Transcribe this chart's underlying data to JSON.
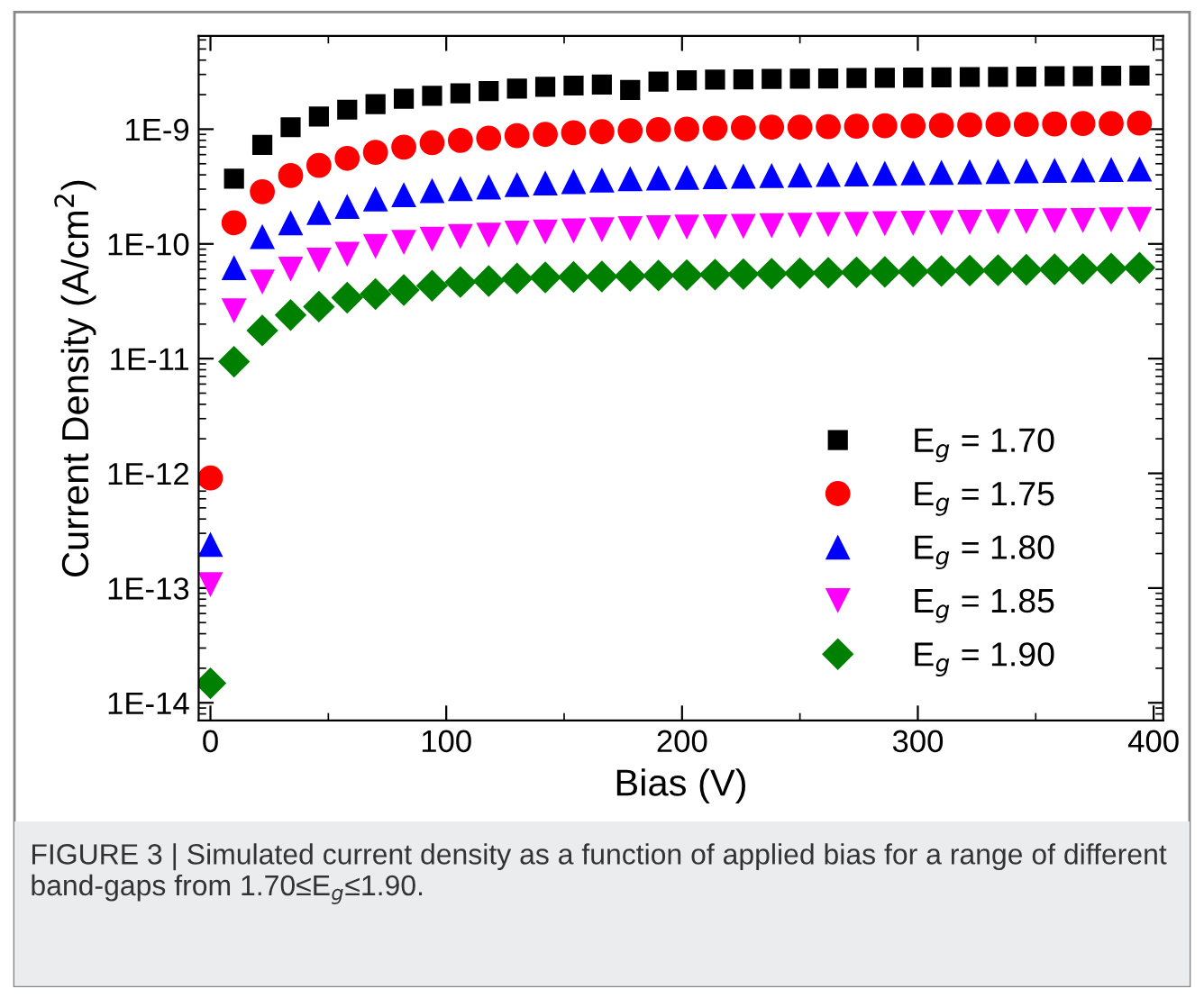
{
  "chart_data": {
    "type": "scatter",
    "xlabel": "Bias (V)",
    "ylabel": "Current Density (A/cm$^{2}$)",
    "x": [
      0,
      10,
      22,
      34,
      46,
      58,
      70,
      82,
      94,
      106,
      118,
      130,
      142,
      154,
      166,
      178,
      190,
      202,
      214,
      226,
      238,
      250,
      262,
      274,
      286,
      298,
      310,
      322,
      334,
      346,
      358,
      370,
      382,
      394
    ],
    "series": [
      {
        "name": "E$_{g}$ = 1.70",
        "color": "#000000",
        "marker": "square",
        "values": [
          null,
          3.7e-10,
          7.3e-10,
          1.04e-09,
          1.29e-09,
          1.48e-09,
          1.65e-09,
          1.84e-09,
          1.95e-09,
          2.05e-09,
          2.15e-09,
          2.26e-09,
          2.34e-09,
          2.4e-09,
          2.45e-09,
          2.2e-09,
          2.6e-09,
          2.67e-09,
          2.7e-09,
          2.72e-09,
          2.74e-09,
          2.76e-09,
          2.77e-09,
          2.79e-09,
          2.8e-09,
          2.82e-09,
          2.83e-09,
          2.85e-09,
          2.86e-09,
          2.87e-09,
          2.89e-09,
          2.9e-09,
          2.92e-09,
          2.93e-09
        ]
      },
      {
        "name": "E$_{g}$ = 1.75",
        "color": "#ff0000",
        "marker": "circle",
        "values": [
          9.1e-13,
          1.53e-10,
          2.85e-10,
          3.94e-10,
          4.83e-10,
          5.57e-10,
          6.28e-10,
          6.98e-10,
          7.62e-10,
          7.98e-10,
          8.36e-10,
          8.79e-10,
          9e-10,
          9.3e-10,
          9.5e-10,
          9.7e-10,
          9.9e-10,
          1e-09,
          1.02e-09,
          1.03e-09,
          1.04e-09,
          1.04e-09,
          1.05e-09,
          1.06e-09,
          1.07e-09,
          1.07e-09,
          1.08e-09,
          1.09e-09,
          1.1e-09,
          1.1e-09,
          1.11e-09,
          1.12e-09,
          1.12e-09,
          1.13e-09
        ]
      },
      {
        "name": "E$_{g}$ = 1.80",
        "color": "#0000ff",
        "marker": "triangle",
        "values": [
          2.4e-13,
          6.2e-11,
          1.16e-10,
          1.53e-10,
          1.88e-10,
          2.12e-10,
          2.47e-10,
          2.69e-10,
          2.92e-10,
          3.03e-10,
          3.14e-10,
          3.29e-10,
          3.4e-10,
          3.5e-10,
          3.6e-10,
          3.7e-10,
          3.75e-10,
          3.8e-10,
          3.86e-10,
          3.9e-10,
          3.95e-10,
          3.99e-10,
          4.03e-10,
          4.08e-10,
          4.12e-10,
          4.16e-10,
          4.2e-10,
          4.25e-10,
          4.29e-10,
          4.33e-10,
          4.37e-10,
          4.41e-10,
          4.46e-10,
          4.5e-10
        ]
      },
      {
        "name": "E$_{g}$ = 1.85",
        "color": "#ff00ff",
        "marker": "triangle_down",
        "values": [
          1.07e-13,
          2.61e-11,
          4.65e-11,
          6.03e-11,
          7.2e-11,
          8.1e-11,
          9.5e-11,
          1.03e-10,
          1.1e-10,
          1.16e-10,
          1.19e-10,
          1.24e-10,
          1.27e-10,
          1.3e-10,
          1.33e-10,
          1.36e-10,
          1.38e-10,
          1.4e-10,
          1.41e-10,
          1.42e-10,
          1.44e-10,
          1.45e-10,
          1.47e-10,
          1.48e-10,
          1.5e-10,
          1.51e-10,
          1.53e-10,
          1.54e-10,
          1.56e-10,
          1.57e-10,
          1.59e-10,
          1.6e-10,
          1.62e-10,
          1.63e-10
        ]
      },
      {
        "name": "E$_{g}$ = 1.90",
        "color": "#008000",
        "marker": "diamond",
        "values": [
          1.48e-14,
          9.4e-12,
          1.76e-11,
          2.4e-11,
          2.84e-11,
          3.4e-11,
          3.65e-11,
          3.96e-11,
          4.32e-11,
          4.65e-11,
          4.75e-11,
          5e-11,
          5.1e-11,
          5.15e-11,
          5.2e-11,
          5.25e-11,
          5.3e-11,
          5.35e-11,
          5.4e-11,
          5.45e-11,
          5.5e-11,
          5.55e-11,
          5.6e-11,
          5.65e-11,
          5.7e-11,
          5.75e-11,
          5.8e-11,
          5.85e-11,
          5.9e-11,
          5.95e-11,
          6e-11,
          6.05e-11,
          6.1e-11,
          6.2e-11
        ]
      }
    ],
    "log": "y",
    "xlim": [
      -5,
      404
    ],
    "xticks": [
      0,
      100,
      200,
      300,
      400
    ],
    "ylim": [
      7e-15,
      6.5e-09
    ],
    "yticks": [
      {
        "value": 1e-14,
        "label": "1E-14"
      },
      {
        "value": 1e-13,
        "label": "1E-13"
      },
      {
        "value": 1e-12,
        "label": "1E-12"
      },
      {
        "value": 1e-11,
        "label": "1E-11"
      },
      {
        "value": 1e-10,
        "label": "1E-10"
      },
      {
        "value": 1e-09,
        "label": "1E-9"
      }
    ],
    "grid": false,
    "legend": "bottom right",
    "annotations": [
      "FIGURE 3 | Simulated current density as a function of applied bias for a range of different band-gaps from 1.70≤E$_{g}$≤1.90."
    ]
  }
}
